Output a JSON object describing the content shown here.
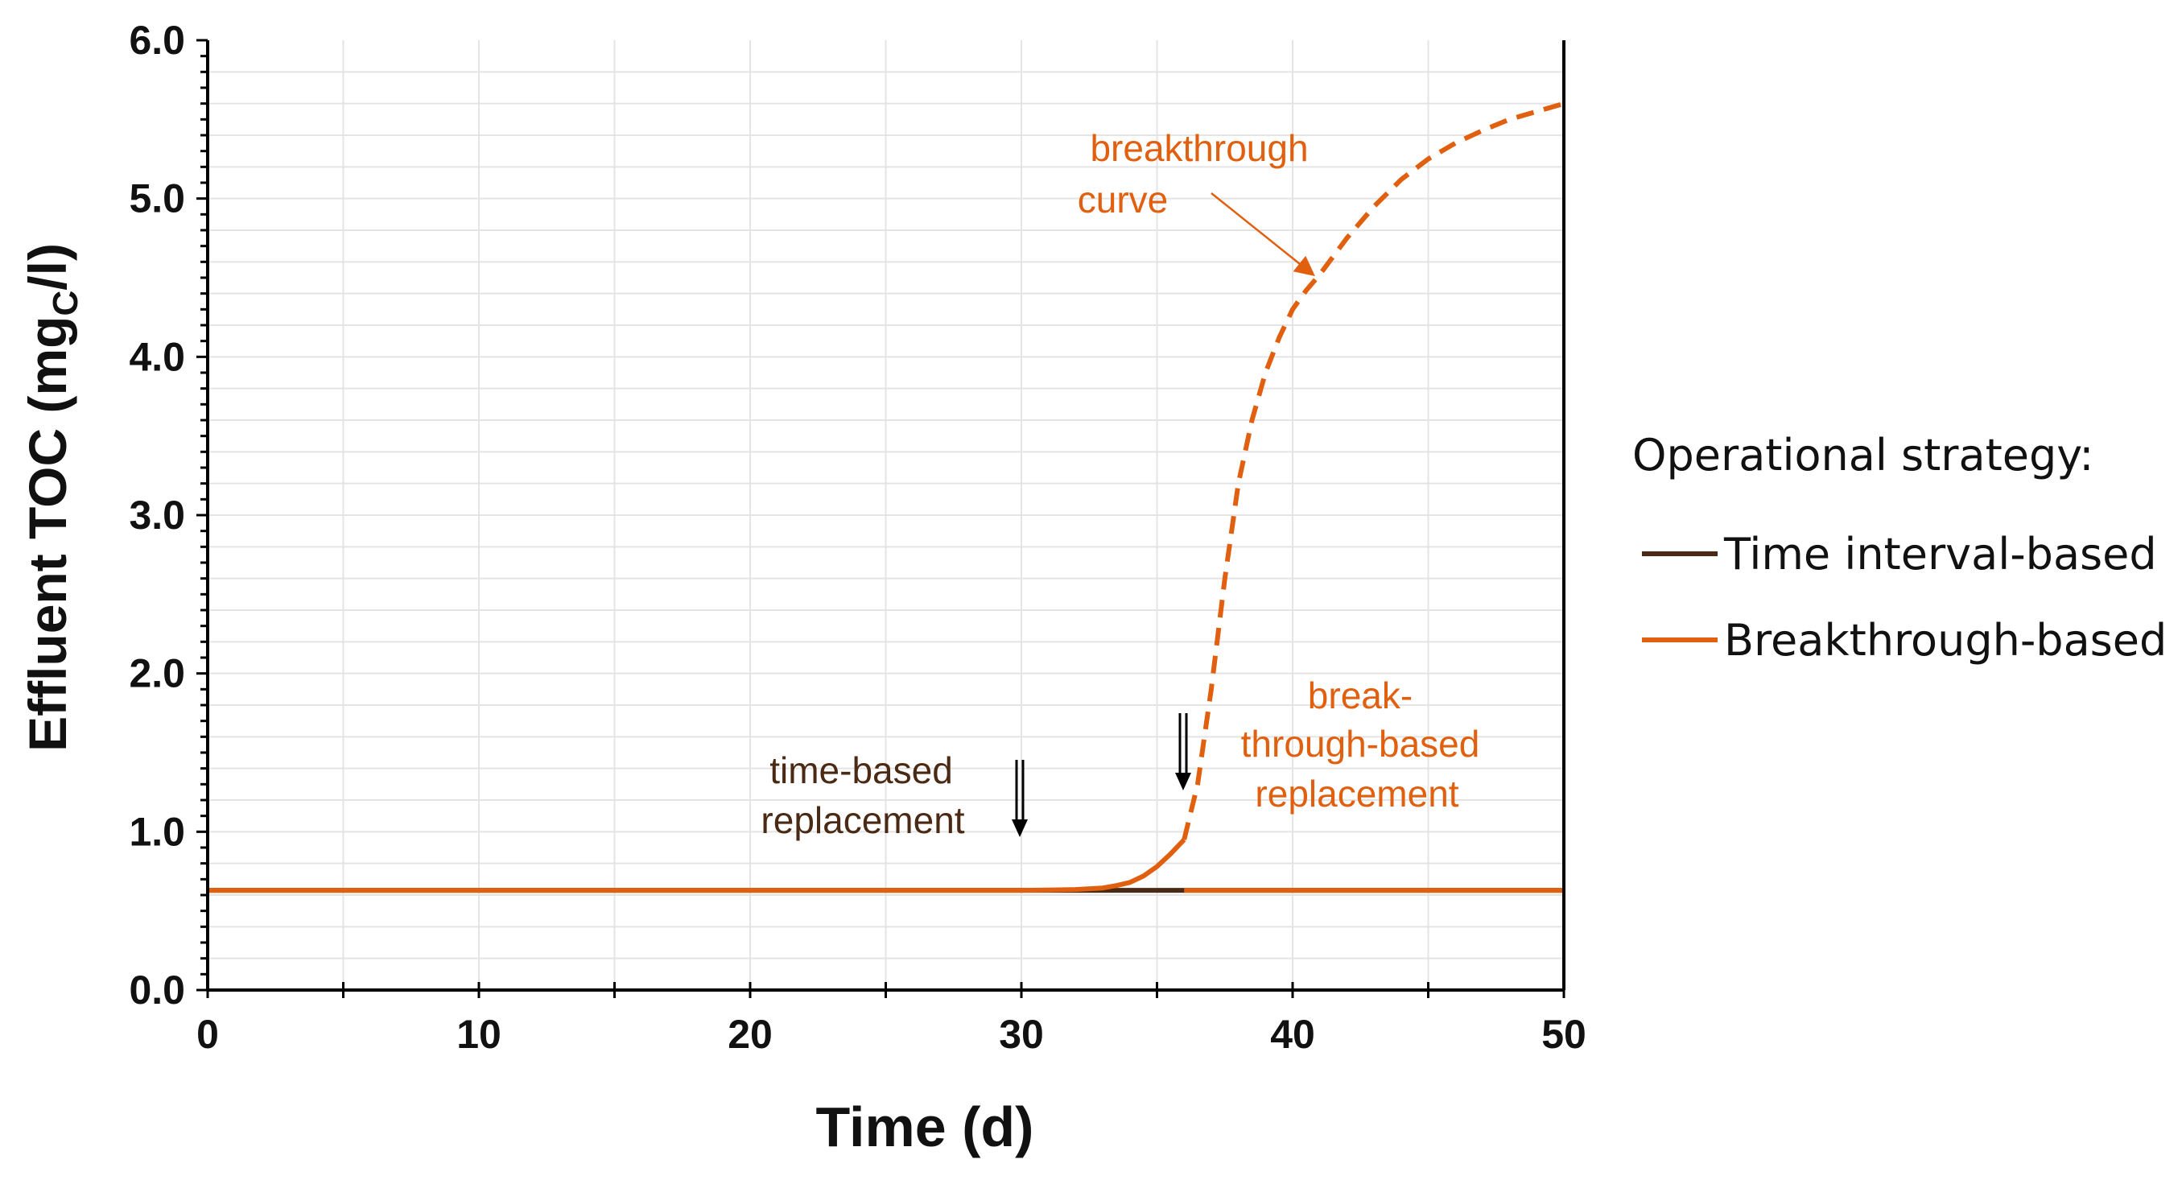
{
  "chart_data": {
    "type": "line",
    "xlabel": "Time (d)",
    "ylabel": {
      "main": "Effluent TOC (mg",
      "subscript": "C",
      "suffix": "/l)"
    },
    "xlim": [
      0,
      50
    ],
    "ylim": [
      0,
      6
    ],
    "x_ticks": [
      "0",
      "10",
      "20",
      "30",
      "40",
      "50"
    ],
    "y_ticks": [
      "0.0",
      "1.0",
      "2.0",
      "3.0",
      "4.0",
      "5.0",
      "6.0"
    ],
    "grid": true,
    "legend": {
      "title": "Operational strategy:",
      "placement": "right",
      "entries": [
        "Time interval-based",
        "Breakthrough-based"
      ]
    },
    "series": [
      {
        "name": "Time interval-based",
        "color": "#4a2a14",
        "x": [
          0,
          36,
          50
        ],
        "y": [
          0.63,
          0.63,
          0.63
        ]
      },
      {
        "name": "Breakthrough-based",
        "color": "#e0600f",
        "x": [
          0,
          30,
          31,
          32,
          33,
          33.5,
          34,
          34.5,
          35,
          35.5,
          36
        ],
        "y": [
          0.63,
          0.63,
          0.632,
          0.635,
          0.645,
          0.66,
          0.68,
          0.72,
          0.78,
          0.86,
          0.95
        ]
      },
      {
        "name": "Breakthrough-based (after replacement)",
        "color": "#e0600f",
        "x": [
          36,
          50
        ],
        "y": [
          0.63,
          0.63
        ]
      },
      {
        "name": "breakthrough curve",
        "color": "#e0600f",
        "style": "dashed",
        "x": [
          36,
          36.5,
          37,
          37.5,
          38,
          38.5,
          39,
          39.5,
          40,
          40.5,
          41,
          42,
          43,
          44,
          45,
          46,
          47,
          48,
          49,
          50
        ],
        "y": [
          0.95,
          1.3,
          1.9,
          2.6,
          3.2,
          3.6,
          3.9,
          4.12,
          4.3,
          4.42,
          4.52,
          4.75,
          4.95,
          5.12,
          5.25,
          5.35,
          5.43,
          5.5,
          5.55,
          5.6
        ]
      }
    ],
    "annotations": [
      {
        "text": [
          "breakthrough",
          "curve"
        ],
        "color": "#e0600f",
        "arrow_to": [
          41,
          4.52
        ]
      },
      {
        "text": [
          "time-based",
          "replacement"
        ],
        "color": "#4a2a14",
        "marker_x": 30
      },
      {
        "text": [
          "break-",
          "through-based",
          "replacement"
        ],
        "color": "#e0600f",
        "marker_x": 36
      }
    ]
  }
}
